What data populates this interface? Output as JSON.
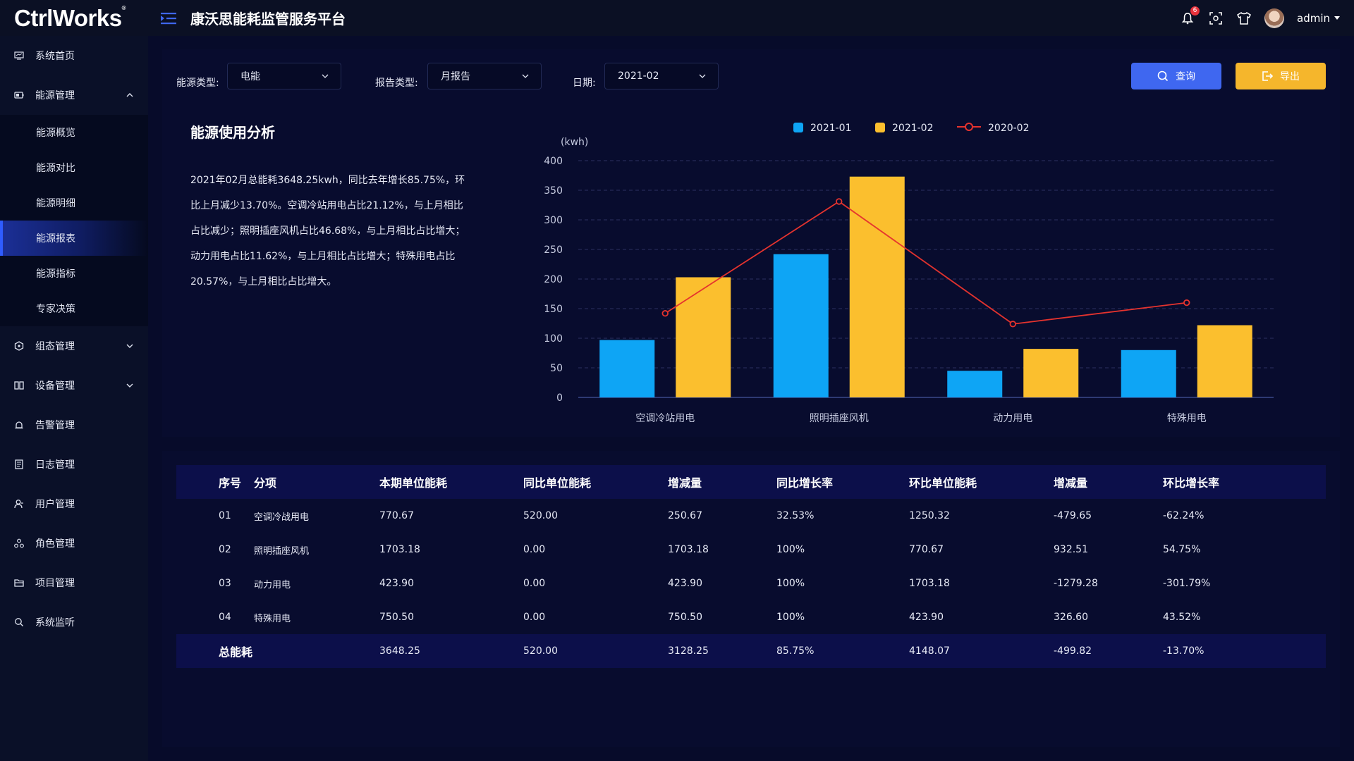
{
  "app": {
    "logo": "CtrlWorks",
    "logo_mark": "®",
    "title": "康沃思能耗监管服务平台",
    "notification_count": "6",
    "user": "admin"
  },
  "sidebar": {
    "items": [
      {
        "label": "系统首页",
        "icon": "monitor-icon"
      },
      {
        "label": "能源管理",
        "icon": "energy-icon",
        "expanded": true,
        "children": [
          "能源概览",
          "能源对比",
          "能源明细",
          "能源报表",
          "能源指标",
          "专家决策"
        ],
        "active_child": "能源报表"
      },
      {
        "label": "组态管理",
        "icon": "hexagon-icon",
        "expandable": true
      },
      {
        "label": "设备管理",
        "icon": "device-icon",
        "expandable": true
      },
      {
        "label": "告警管理",
        "icon": "bell-alarm-icon"
      },
      {
        "label": "日志管理",
        "icon": "log-icon"
      },
      {
        "label": "用户管理",
        "icon": "user-icon"
      },
      {
        "label": "角色管理",
        "icon": "role-icon"
      },
      {
        "label": "项目管理",
        "icon": "folder-icon"
      },
      {
        "label": "系统监听",
        "icon": "search-icon"
      }
    ]
  },
  "filters": {
    "energy_type_label": "能源类型:",
    "energy_type_value": "电能",
    "report_type_label": "报告类型:",
    "report_type_value": "月报告",
    "date_label": "日期:",
    "date_value": "2021-02",
    "query_button": "查询",
    "export_button": "导出"
  },
  "analysis": {
    "title": "能源使用分析",
    "text": "2021年02月总能耗3648.25kwh，同比去年增长85.75%，环比上月减少13.70%。空调冷站用电占比21.12%，与上月相比占比减少；照明插座风机占比46.68%，与上月相比占比增大；动力用电占比11.62%，与上月相比占比增大；特殊用电占比20.57%，与上月相比占比增大。"
  },
  "chart_data": {
    "type": "bar",
    "ylabel": "(kwh)",
    "ylim": [
      0,
      400
    ],
    "yticks": [
      0,
      50,
      100,
      150,
      200,
      250,
      300,
      350,
      400
    ],
    "categories": [
      "空调冷站用电",
      "照明插座风机",
      "动力用电",
      "特殊用电"
    ],
    "series": [
      {
        "name": "2021-01",
        "type": "bar",
        "color": "#0ea5f5",
        "values": [
          97,
          242,
          45,
          80
        ]
      },
      {
        "name": "2021-02",
        "type": "bar",
        "color": "#fbbf2e",
        "values": [
          203,
          373,
          82,
          122
        ]
      },
      {
        "name": "2020-02",
        "type": "line",
        "color": "#e5332e",
        "values": [
          142,
          331,
          124,
          160
        ]
      }
    ],
    "legend_position": "top",
    "grid": true
  },
  "table": {
    "headers": [
      "序号",
      "分项",
      "本期单位能耗",
      "同比单位能耗",
      "增减量",
      "同比增长率",
      "环比单位能耗",
      "增减量",
      "环比增长率"
    ],
    "rows": [
      [
        "01",
        "空调冷战用电",
        "770.67",
        "520.00",
        "250.67",
        "32.53%",
        "1250.32",
        "-479.65",
        "-62.24%"
      ],
      [
        "02",
        "照明插座风机",
        "1703.18",
        "0.00",
        "1703.18",
        "100%",
        "770.67",
        "932.51",
        "54.75%"
      ],
      [
        "03",
        "动力用电",
        "423.90",
        "0.00",
        "423.90",
        "100%",
        "1703.18",
        "-1279.28",
        "-301.79%"
      ],
      [
        "04",
        "特殊用电",
        "750.50",
        "0.00",
        "750.50",
        "100%",
        "423.90",
        "326.60",
        "43.52%"
      ]
    ],
    "total": [
      "总能耗",
      "",
      "3648.25",
      "520.00",
      "3128.25",
      "85.75%",
      "4148.07",
      "-499.82",
      "-13.70%"
    ]
  }
}
